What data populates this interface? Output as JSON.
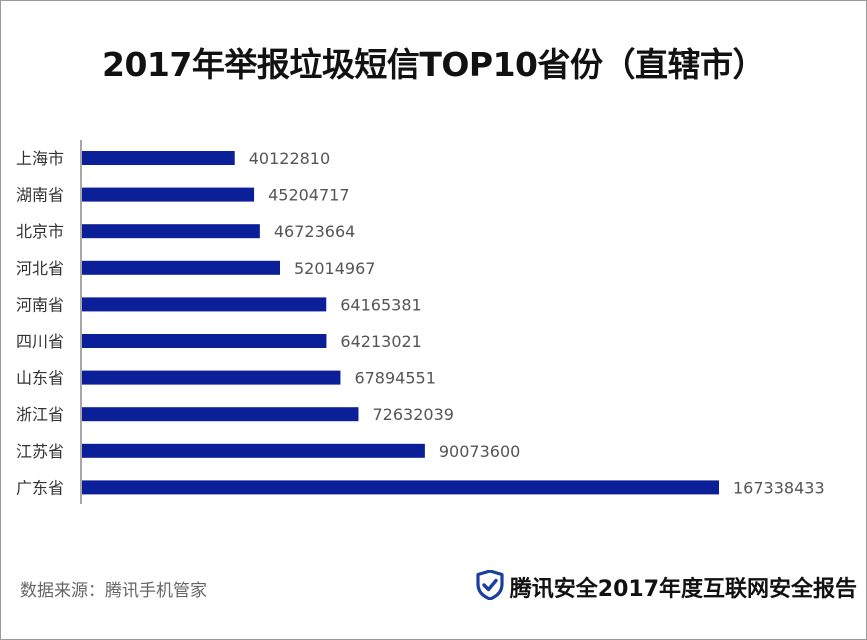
{
  "title": "2017年举报垃圾短信TOP10省份（直辖市）",
  "source": "数据来源：腾讯手机管家",
  "brand": {
    "text": "腾讯安全2017年度互联网安全报告",
    "icon": "shield-check-icon",
    "icon_color": "#1a3f9e"
  },
  "colors": {
    "bar": "#0b1f99",
    "axis": "#8a8a8a",
    "label": "#333333",
    "value": "#555555"
  },
  "chart_data": {
    "type": "bar",
    "orientation": "horizontal",
    "title": "2017年举报垃圾短信TOP10省份（直辖市）",
    "categories": [
      "上海市",
      "湖南省",
      "北京市",
      "河北省",
      "河南省",
      "四川省",
      "山东省",
      "浙江省",
      "江苏省",
      "广东省"
    ],
    "values": [
      40122810,
      45204717,
      46723664,
      52014967,
      64165381,
      64213021,
      67894551,
      72632039,
      90073600,
      167338433
    ],
    "xlim": [
      0,
      167338433
    ],
    "grid": false,
    "legend": "none",
    "data_labels": true
  }
}
